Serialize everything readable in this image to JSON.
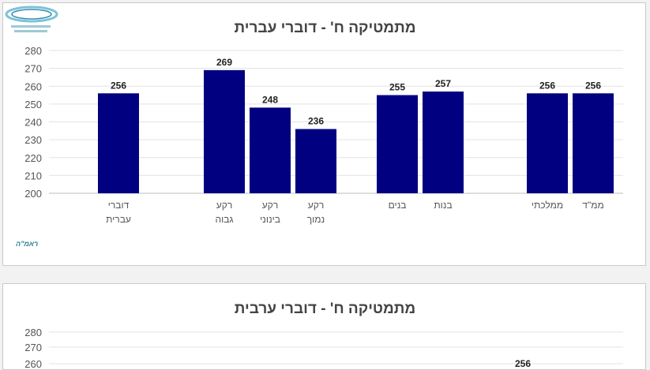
{
  "chart_data": [
    {
      "type": "bar",
      "title": "מתמטיקה ח' - דוברי עברית",
      "ylim": [
        200,
        280
      ],
      "yticks": [
        200,
        210,
        220,
        230,
        240,
        250,
        260,
        270,
        280
      ],
      "grid": true,
      "bar_color": "#000080",
      "categories": [
        {
          "label": [
            "דוברי",
            "עברית"
          ],
          "value": 256
        },
        {
          "label": [
            "רקע",
            "גבוה"
          ],
          "value": 269
        },
        {
          "label": [
            "רקע",
            "בינוני"
          ],
          "value": 248
        },
        {
          "label": [
            "רקע",
            "נמוך"
          ],
          "value": 236
        },
        {
          "label": [
            "בנים"
          ],
          "value": 255
        },
        {
          "label": [
            "בנות"
          ],
          "value": 257
        },
        {
          "label": [
            "ממלכתי"
          ],
          "value": 256
        },
        {
          "label": [
            "ממ\"ד"
          ],
          "value": 256
        }
      ]
    },
    {
      "type": "bar",
      "title": "מתמטיקה ח' - דוברי ערבית",
      "ylim": [
        200,
        280
      ],
      "yticks": [
        260,
        270,
        280
      ],
      "grid": true,
      "bar_color": "#000080",
      "visible_labels": [
        "256"
      ]
    }
  ],
  "logo": {
    "text": "ראמ\"ה",
    "icon": "rama-logo-icon"
  }
}
